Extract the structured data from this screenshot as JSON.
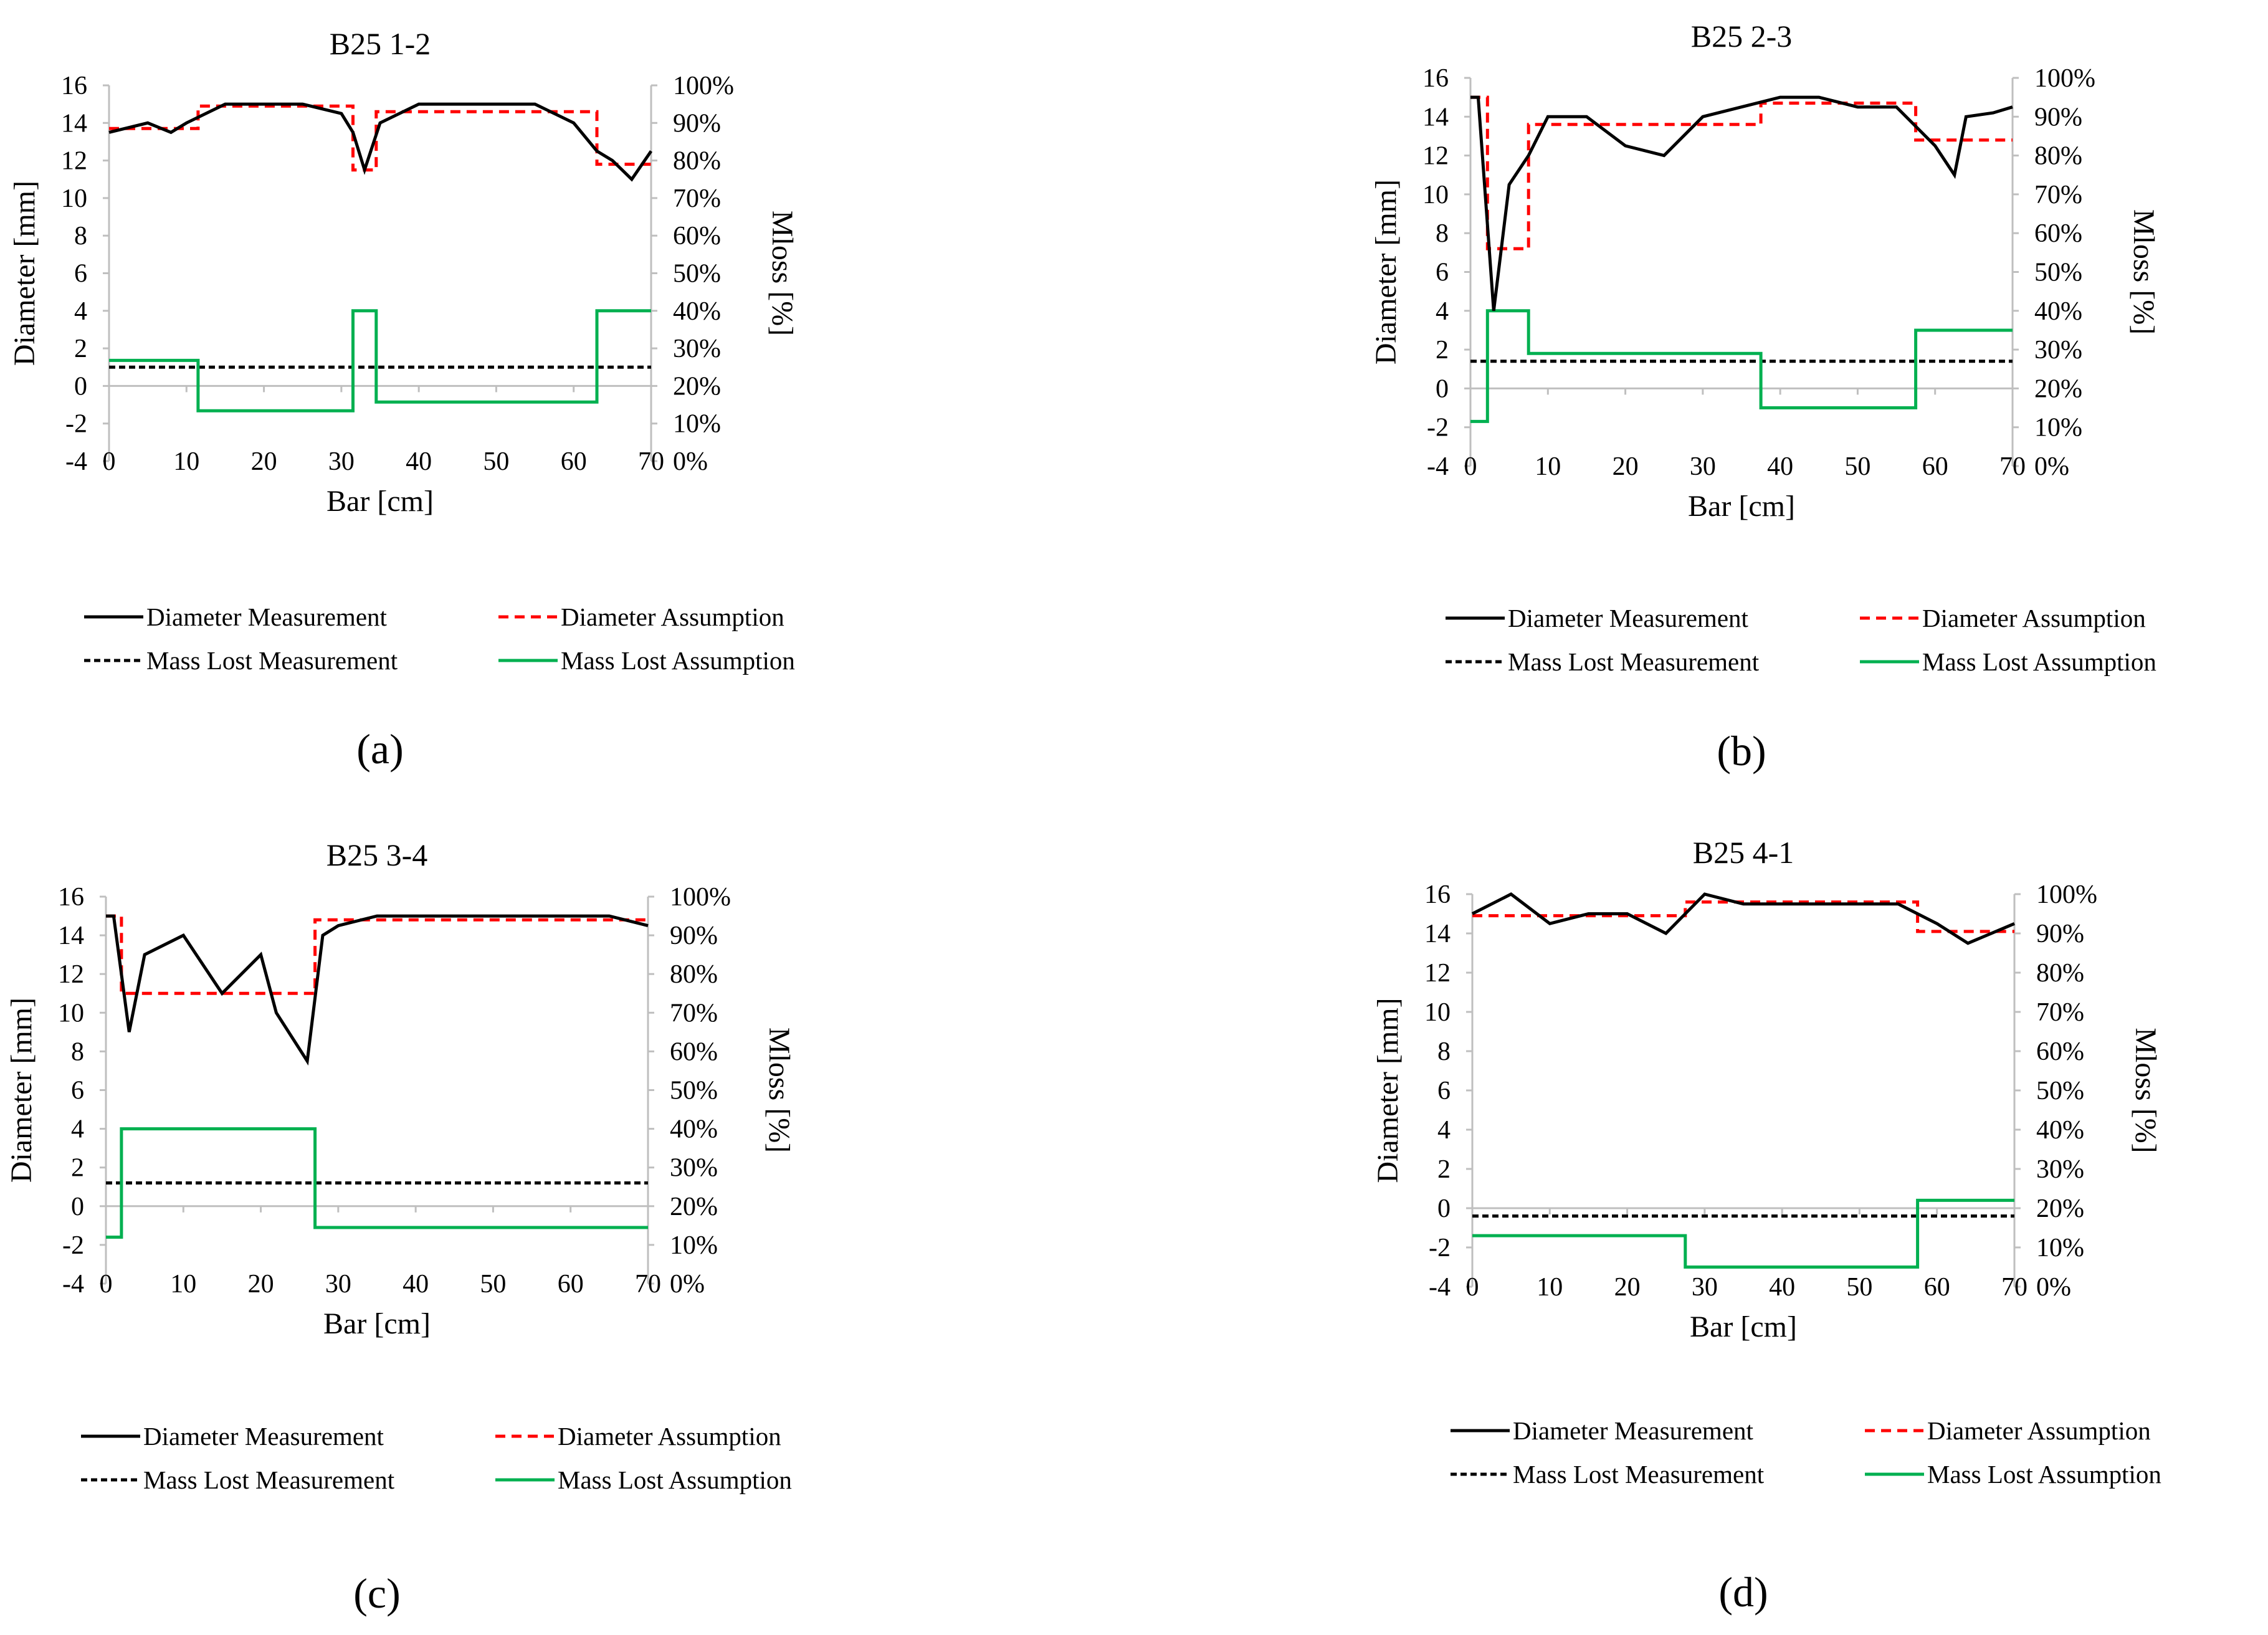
{
  "figure": {
    "panel_labels": [
      "(a)",
      "(b)",
      "(c)",
      "(d)"
    ]
  },
  "colors": {
    "diameter_measurement": "#000000",
    "diameter_assumption": "#ff0000",
    "mass_lost_measurement": "#000000",
    "mass_lost_assumption": "#00b050",
    "axis": "#bfbfbf"
  },
  "chart_data": [
    {
      "type": "line",
      "title": "B25 1-2",
      "xlabel": "Bar [cm]",
      "ylabel": "Diameter [mm]",
      "y2label": "Mloss [%]",
      "xlim": [
        0,
        70
      ],
      "ylim": [
        -4,
        16
      ],
      "y2lim": [
        0,
        100
      ],
      "xticks": [
        "0",
        "10",
        "20",
        "30",
        "40",
        "50",
        "60",
        "70"
      ],
      "yticks": [
        "-4",
        "-2",
        "0",
        "2",
        "4",
        "6",
        "8",
        "10",
        "12",
        "14",
        "16"
      ],
      "y2ticks": [
        "0%",
        "10%",
        "20%",
        "30%",
        "40%",
        "50%",
        "60%",
        "70%",
        "80%",
        "90%",
        "100%"
      ],
      "legend": [
        "Diameter Measurement",
        "Diameter Assumption",
        "Mass Lost Measurement",
        "Mass Lost Assumption"
      ],
      "series": [
        {
          "name": "Diameter Measurement",
          "axis": "left",
          "style": "solid",
          "x": [
            0,
            5,
            8,
            10,
            15,
            20,
            25,
            30,
            31.5,
            33,
            35,
            40,
            45,
            50,
            55,
            60,
            63,
            65,
            67.5,
            70
          ],
          "y": [
            13.5,
            14,
            13.5,
            14,
            15,
            15,
            15,
            14.5,
            13.5,
            11.5,
            14,
            15,
            15,
            15,
            15,
            14,
            12.5,
            12,
            11,
            12.5
          ]
        },
        {
          "name": "Diameter Assumption",
          "axis": "left",
          "style": "dashed",
          "x": [
            0,
            11.5,
            11.5,
            31.5,
            31.5,
            34.5,
            34.5,
            63,
            63,
            70
          ],
          "y": [
            13.7,
            13.7,
            14.9,
            14.9,
            11.5,
            11.5,
            14.6,
            14.6,
            11.8,
            11.8
          ]
        },
        {
          "name": "Mass Lost Measurement",
          "axis": "right",
          "style": "dashed",
          "x": [
            0,
            70
          ],
          "y": [
            25,
            25
          ]
        },
        {
          "name": "Mass Lost Assumption",
          "axis": "right",
          "style": "solid",
          "x": [
            0,
            11.5,
            11.5,
            31.5,
            31.5,
            34.5,
            34.5,
            63,
            63,
            70
          ],
          "y": [
            26.8,
            26.8,
            13.4,
            13.4,
            40,
            40,
            15.7,
            15.7,
            40,
            40
          ]
        }
      ]
    },
    {
      "type": "line",
      "title": "B25 2-3",
      "xlabel": "Bar [cm]",
      "ylabel": "Diameter [mm]",
      "y2label": "Mloss [%]",
      "xlim": [
        0,
        70
      ],
      "ylim": [
        -4,
        16
      ],
      "y2lim": [
        0,
        100
      ],
      "xticks": [
        "0",
        "10",
        "20",
        "30",
        "40",
        "50",
        "60",
        "70"
      ],
      "yticks": [
        "-4",
        "-2",
        "0",
        "2",
        "4",
        "6",
        "8",
        "10",
        "12",
        "14",
        "16"
      ],
      "y2ticks": [
        "0%",
        "10%",
        "20%",
        "30%",
        "40%",
        "50%",
        "60%",
        "70%",
        "80%",
        "90%",
        "100%"
      ],
      "legend": [
        "Diameter Measurement",
        "Diameter Assumption",
        "Mass Lost Measurement",
        "Mass Lost Assumption"
      ],
      "series": [
        {
          "name": "Diameter Measurement",
          "axis": "left",
          "style": "solid",
          "x": [
            0,
            1,
            3,
            5,
            7.5,
            10,
            15,
            20,
            25,
            30,
            35,
            40,
            45,
            50,
            55,
            60,
            62.5,
            64,
            67.5,
            70
          ],
          "y": [
            15,
            15,
            4,
            10.5,
            12,
            14,
            14,
            12.5,
            12,
            14,
            14.5,
            15,
            15,
            14.5,
            14.5,
            12.5,
            11,
            14,
            14.2,
            14.5
          ]
        },
        {
          "name": "Diameter Assumption",
          "axis": "left",
          "style": "dashed",
          "x": [
            0,
            2.2,
            2.2,
            7.5,
            7.5,
            37.5,
            37.5,
            57.5,
            57.5,
            70
          ],
          "y": [
            15,
            15,
            7.2,
            7.2,
            13.6,
            13.6,
            14.7,
            14.7,
            12.8,
            12.8
          ]
        },
        {
          "name": "Mass Lost Measurement",
          "axis": "right",
          "style": "dashed",
          "x": [
            0,
            70
          ],
          "y": [
            27,
            27
          ]
        },
        {
          "name": "Mass Lost Assumption",
          "axis": "right",
          "style": "solid",
          "x": [
            0,
            2.2,
            2.2,
            7.5,
            7.5,
            37.5,
            37.5,
            57.5,
            57.5,
            70
          ],
          "y": [
            11.5,
            11.5,
            40,
            40,
            29,
            29,
            15,
            15,
            35,
            35
          ]
        }
      ]
    },
    {
      "type": "line",
      "title": "B25 3-4",
      "xlabel": "Bar [cm]",
      "ylabel": "Diameter [mm]",
      "y2label": "Mloss [%]",
      "xlim": [
        0,
        70
      ],
      "ylim": [
        -4,
        16
      ],
      "y2lim": [
        0,
        100
      ],
      "xticks": [
        "0",
        "10",
        "20",
        "30",
        "40",
        "50",
        "60",
        "70"
      ],
      "yticks": [
        "-4",
        "-2",
        "0",
        "2",
        "4",
        "6",
        "8",
        "10",
        "12",
        "14",
        "16"
      ],
      "y2ticks": [
        "0%",
        "10%",
        "20%",
        "30%",
        "40%",
        "50%",
        "60%",
        "70%",
        "80%",
        "90%",
        "100%"
      ],
      "legend": [
        "Diameter Measurement",
        "Diameter Assumption",
        "Mass Lost Measurement",
        "Mass Lost Assumption"
      ],
      "series": [
        {
          "name": "Diameter Measurement",
          "axis": "left",
          "style": "solid",
          "x": [
            0,
            1,
            3,
            5,
            10,
            15,
            20,
            22,
            26,
            28,
            30,
            35,
            40,
            45,
            50,
            55,
            60,
            65,
            70
          ],
          "y": [
            15,
            15,
            9,
            13,
            14,
            11,
            13,
            10,
            7.5,
            14,
            14.5,
            15,
            15,
            15,
            15,
            15,
            15,
            15,
            14.5
          ]
        },
        {
          "name": "Diameter Assumption",
          "axis": "left",
          "style": "dashed",
          "x": [
            0,
            2,
            2,
            27,
            27,
            70
          ],
          "y": [
            15,
            15,
            11,
            11,
            14.8,
            14.8
          ]
        },
        {
          "name": "Mass Lost Measurement",
          "axis": "right",
          "style": "dashed",
          "x": [
            0,
            70
          ],
          "y": [
            26,
            26
          ]
        },
        {
          "name": "Mass Lost Assumption",
          "axis": "right",
          "style": "solid",
          "x": [
            0,
            2,
            2,
            27,
            27,
            70
          ],
          "y": [
            12,
            12,
            40,
            40,
            14.5,
            14.5
          ]
        }
      ]
    },
    {
      "type": "line",
      "title": "B25 4-1",
      "xlabel": "Bar [cm]",
      "ylabel": "Diameter [mm]",
      "y2label": "Mloss [%]",
      "xlim": [
        0,
        70
      ],
      "ylim": [
        -4,
        16
      ],
      "y2lim": [
        0,
        100
      ],
      "xticks": [
        "0",
        "10",
        "20",
        "30",
        "40",
        "50",
        "60",
        "70"
      ],
      "yticks": [
        "-4",
        "-2",
        "0",
        "2",
        "4",
        "6",
        "8",
        "10",
        "12",
        "14",
        "16"
      ],
      "y2ticks": [
        "0%",
        "10%",
        "20%",
        "30%",
        "40%",
        "50%",
        "60%",
        "70%",
        "80%",
        "90%",
        "100%"
      ],
      "legend": [
        "Diameter Measurement",
        "Diameter Assumption",
        "Mass Lost Measurement",
        "Mass Lost Assumption"
      ],
      "series": [
        {
          "name": "Diameter Measurement",
          "axis": "left",
          "style": "solid",
          "x": [
            0,
            5,
            10,
            15,
            20,
            25,
            30,
            35,
            40,
            45,
            50,
            55,
            60,
            64,
            70
          ],
          "y": [
            15,
            16,
            14.5,
            15,
            15,
            14,
            16,
            15.5,
            15.5,
            15.5,
            15.5,
            15.5,
            14.5,
            13.5,
            14.5
          ]
        },
        {
          "name": "Diameter Assumption",
          "axis": "left",
          "style": "dashed",
          "x": [
            0,
            27.5,
            27.5,
            57.5,
            57.5,
            70
          ],
          "y": [
            14.9,
            14.9,
            15.6,
            15.6,
            14.1,
            14.1
          ]
        },
        {
          "name": "Mass Lost Measurement",
          "axis": "right",
          "style": "dashed",
          "x": [
            0,
            70
          ],
          "y": [
            18,
            18
          ]
        },
        {
          "name": "Mass Lost Assumption",
          "axis": "right",
          "style": "solid",
          "x": [
            0,
            27.5,
            27.5,
            57.5,
            57.5,
            70
          ],
          "y": [
            13,
            13,
            5,
            5,
            22,
            22
          ]
        }
      ]
    }
  ]
}
